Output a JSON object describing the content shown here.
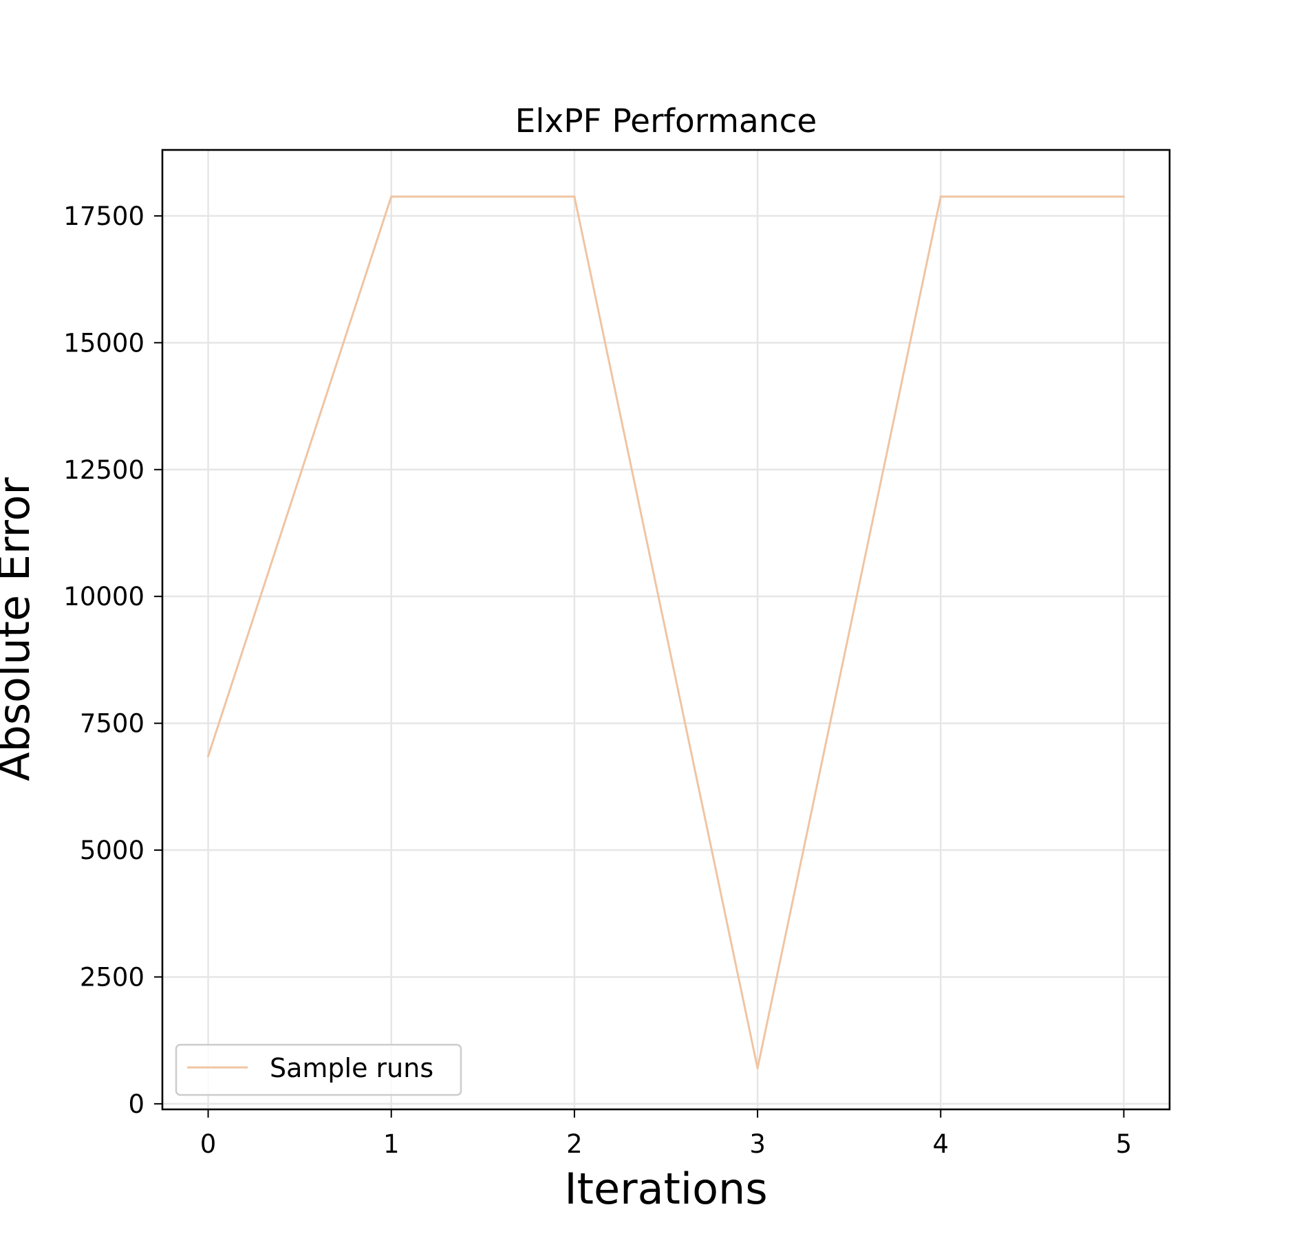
{
  "chart_data": {
    "type": "line",
    "title": "ElxPF Performance",
    "xlabel": "Iterations",
    "ylabel": "Absolute Error",
    "x": [
      0,
      1,
      2,
      3,
      4,
      5
    ],
    "xticks": [
      "0",
      "1",
      "2",
      "3",
      "4",
      "5"
    ],
    "yticks": [
      "0",
      "2500",
      "5000",
      "7500",
      "10000",
      "12500",
      "15000",
      "17500"
    ],
    "xlim": [
      -0.25,
      5.25
    ],
    "ylim": [
      -110,
      18800
    ],
    "grid": true,
    "legend_position": "lower-left",
    "series": [
      {
        "name": "Sample runs",
        "color": "#f0c4a2",
        "values": [
          6850,
          17880,
          17880,
          700,
          17880,
          17880
        ]
      }
    ]
  }
}
